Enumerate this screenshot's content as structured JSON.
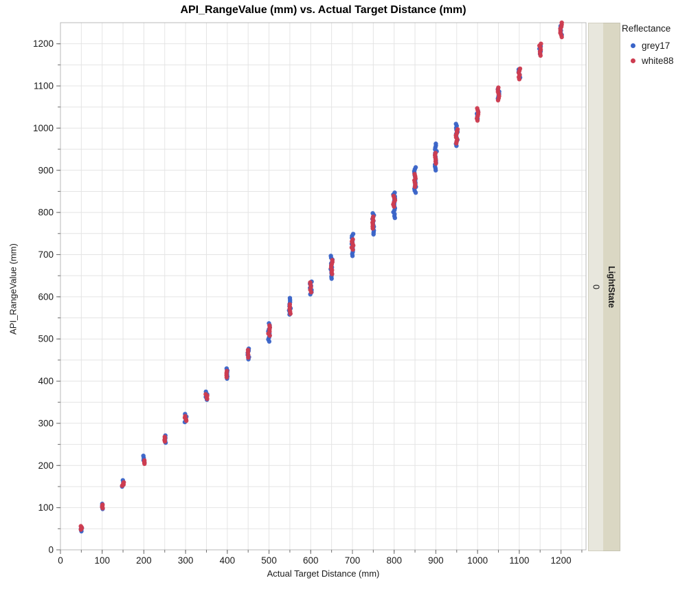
{
  "chart_data": {
    "type": "scatter",
    "title": "API_RangeValue (mm) vs. Actual Target Distance (mm)",
    "xlabel": "Actual Target Distance (mm)",
    "ylabel": "API_RangeValue (mm)",
    "xlim": [
      0,
      1260
    ],
    "ylim": [
      0,
      1250
    ],
    "x_ticks": [
      0,
      100,
      200,
      300,
      400,
      500,
      600,
      700,
      800,
      900,
      1000,
      1100,
      1200
    ],
    "y_ticks": [
      0,
      100,
      200,
      300,
      400,
      500,
      600,
      700,
      800,
      900,
      1000,
      1100,
      1200
    ],
    "minor_tick_step": 50,
    "grid": {
      "step": 50,
      "color": "#e4e4e4",
      "on": true
    },
    "legend": {
      "title": "Reflectance",
      "position": "top-right"
    },
    "facet": {
      "label": "LightState",
      "value": "0"
    },
    "series": [
      {
        "name": "grey17",
        "color": "#3A64C8",
        "clusters": [
          {
            "x": 50,
            "y_min": 44,
            "y_max": 52
          },
          {
            "x": 100,
            "y_min": 97,
            "y_max": 109
          },
          {
            "x": 150,
            "y_min": 150,
            "y_max": 165
          },
          {
            "x": 200,
            "y_min": 207,
            "y_max": 223
          },
          {
            "x": 250,
            "y_min": 254,
            "y_max": 271
          },
          {
            "x": 300,
            "y_min": 303,
            "y_max": 322
          },
          {
            "x": 350,
            "y_min": 356,
            "y_max": 375
          },
          {
            "x": 400,
            "y_min": 406,
            "y_max": 430
          },
          {
            "x": 450,
            "y_min": 452,
            "y_max": 477
          },
          {
            "x": 500,
            "y_min": 494,
            "y_max": 537
          },
          {
            "x": 550,
            "y_min": 558,
            "y_max": 597
          },
          {
            "x": 600,
            "y_min": 606,
            "y_max": 636
          },
          {
            "x": 650,
            "y_min": 643,
            "y_max": 697
          },
          {
            "x": 700,
            "y_min": 697,
            "y_max": 749
          },
          {
            "x": 750,
            "y_min": 748,
            "y_max": 798
          },
          {
            "x": 800,
            "y_min": 787,
            "y_max": 847
          },
          {
            "x": 850,
            "y_min": 847,
            "y_max": 907
          },
          {
            "x": 900,
            "y_min": 900,
            "y_max": 963
          },
          {
            "x": 950,
            "y_min": 958,
            "y_max": 1010
          },
          {
            "x": 1000,
            "y_min": 1022,
            "y_max": 1040
          },
          {
            "x": 1050,
            "y_min": 1070,
            "y_max": 1092
          },
          {
            "x": 1100,
            "y_min": 1120,
            "y_max": 1139
          },
          {
            "x": 1150,
            "y_min": 1176,
            "y_max": 1194
          },
          {
            "x": 1200,
            "y_min": 1221,
            "y_max": 1242
          }
        ]
      },
      {
        "name": "white88",
        "color": "#CD3C50",
        "clusters": [
          {
            "x": 50,
            "y_min": 48,
            "y_max": 56
          },
          {
            "x": 100,
            "y_min": 99,
            "y_max": 107
          },
          {
            "x": 150,
            "y_min": 152,
            "y_max": 160
          },
          {
            "x": 200,
            "y_min": 204,
            "y_max": 212
          },
          {
            "x": 250,
            "y_min": 257,
            "y_max": 268
          },
          {
            "x": 300,
            "y_min": 306,
            "y_max": 317
          },
          {
            "x": 350,
            "y_min": 358,
            "y_max": 369
          },
          {
            "x": 400,
            "y_min": 409,
            "y_max": 424
          },
          {
            "x": 450,
            "y_min": 456,
            "y_max": 474
          },
          {
            "x": 500,
            "y_min": 508,
            "y_max": 532
          },
          {
            "x": 550,
            "y_min": 560,
            "y_max": 582
          },
          {
            "x": 600,
            "y_min": 611,
            "y_max": 634
          },
          {
            "x": 650,
            "y_min": 654,
            "y_max": 687
          },
          {
            "x": 700,
            "y_min": 712,
            "y_max": 736
          },
          {
            "x": 750,
            "y_min": 762,
            "y_max": 790
          },
          {
            "x": 800,
            "y_min": 814,
            "y_max": 839
          },
          {
            "x": 850,
            "y_min": 861,
            "y_max": 891
          },
          {
            "x": 900,
            "y_min": 916,
            "y_max": 941
          },
          {
            "x": 950,
            "y_min": 964,
            "y_max": 997
          },
          {
            "x": 1000,
            "y_min": 1018,
            "y_max": 1047
          },
          {
            "x": 1050,
            "y_min": 1066,
            "y_max": 1096
          },
          {
            "x": 1100,
            "y_min": 1116,
            "y_max": 1141
          },
          {
            "x": 1150,
            "y_min": 1172,
            "y_max": 1200
          },
          {
            "x": 1200,
            "y_min": 1216,
            "y_max": 1250
          }
        ]
      }
    ]
  },
  "legend": {
    "title": "Reflectance",
    "entries": [
      {
        "label": "grey17",
        "color": "#3A64C8"
      },
      {
        "label": "white88",
        "color": "#CD3C50"
      }
    ]
  },
  "group_panel": {
    "value": "0",
    "label": "LightState"
  },
  "colors": {
    "point_blue": "#3A64C8",
    "point_red": "#CD3C50",
    "gridline": "#e4e4e4",
    "plot_border": "#b9b9b9",
    "tick": "#6f6f6f",
    "strip_value_bg": "#E8E7DD",
    "strip_label_bg": "#DAD7C3"
  }
}
